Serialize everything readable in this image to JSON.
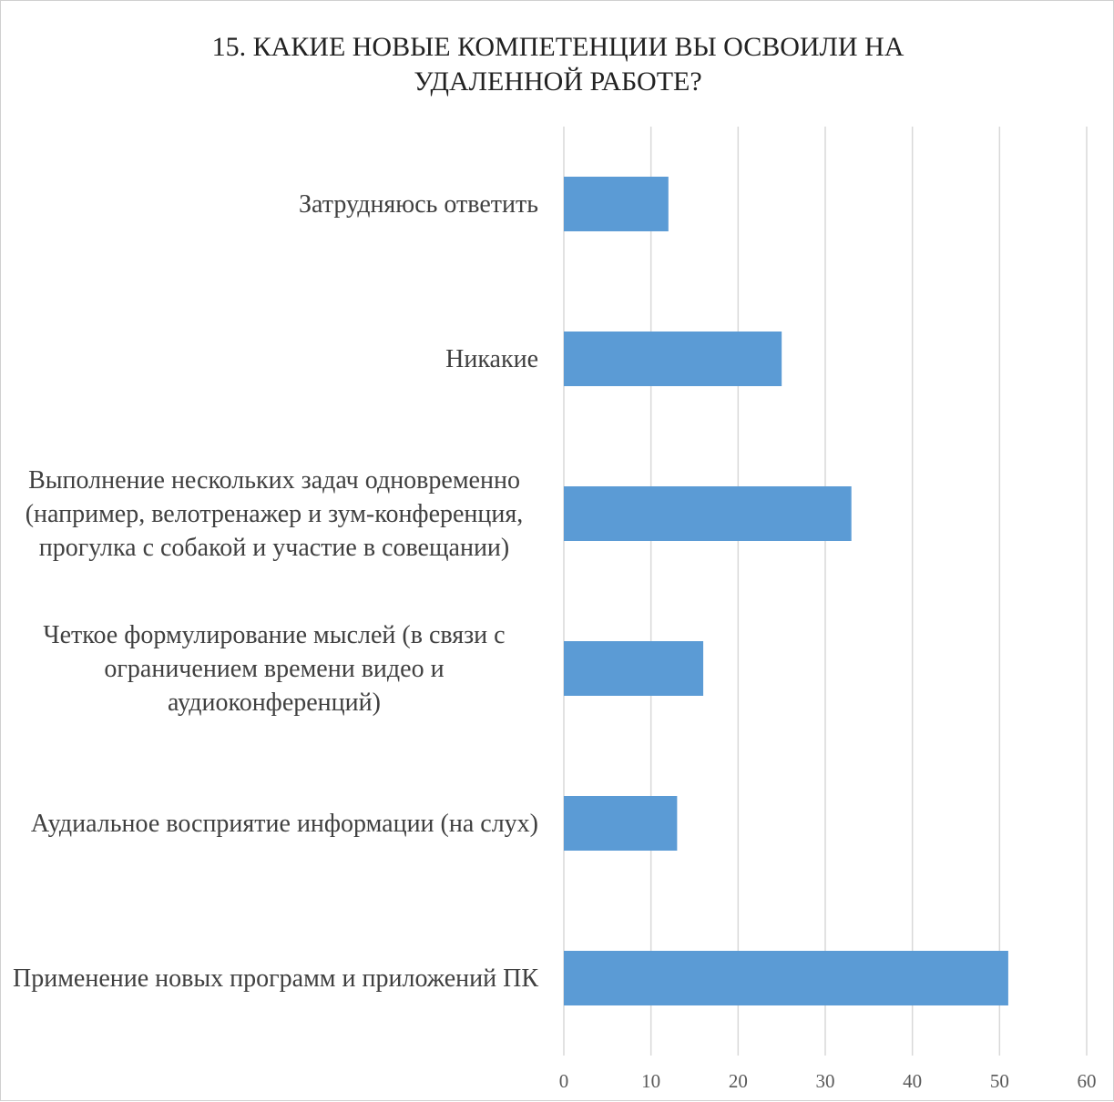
{
  "chart_data": {
    "type": "bar",
    "orientation": "horizontal",
    "title": "15. КАКИЕ НОВЫЕ КОМПЕТЕНЦИИ ВЫ ОСВОИЛИ НА УДАЛЕННОЙ РАБОТЕ?",
    "categories": [
      "Затрудняюсь ответить",
      "Никакие",
      "Выполнение нескольких задач одновременно (например, велотренажер и зум-конференция, прогулка с собакой и участие в совещании)",
      "Четкое формулирование мыслей (в связи с ограничением времени видео и аудиоконференций)",
      "Аудиальное восприятие информации (на слух)",
      "Применение новых программ и приложений ПК"
    ],
    "values": [
      12,
      25,
      33,
      16,
      13,
      51
    ],
    "color": "#5b9bd5",
    "xlim": [
      0,
      60
    ],
    "xticks": [
      0,
      10,
      20,
      30,
      40,
      50,
      60
    ],
    "grid": true
  }
}
